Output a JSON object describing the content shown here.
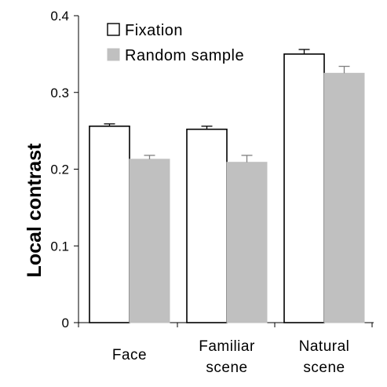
{
  "chart_data": {
    "type": "bar",
    "title": "",
    "xlabel": "",
    "ylabel": "Local contrast",
    "ylim": [
      0,
      0.4
    ],
    "yticks": [
      "0",
      "0.1",
      "0.2",
      "0.3",
      "0.4"
    ],
    "categories": [
      [
        "Face"
      ],
      [
        "Familiar",
        "scene"
      ],
      [
        "Natural",
        "scene"
      ]
    ],
    "series": [
      {
        "name": "Fixation",
        "values": [
          0.256,
          0.252,
          0.35
        ],
        "errors": [
          0.003,
          0.004,
          0.006
        ],
        "fill": "#ffffff",
        "stroke": "#000000"
      },
      {
        "name": "Random sample",
        "values": [
          0.213,
          0.209,
          0.325
        ],
        "errors": [
          0.005,
          0.009,
          0.009
        ],
        "fill": "#c0c0c0",
        "stroke": "#c0c0c0"
      }
    ],
    "legend_position": "top-left",
    "grid": false
  }
}
